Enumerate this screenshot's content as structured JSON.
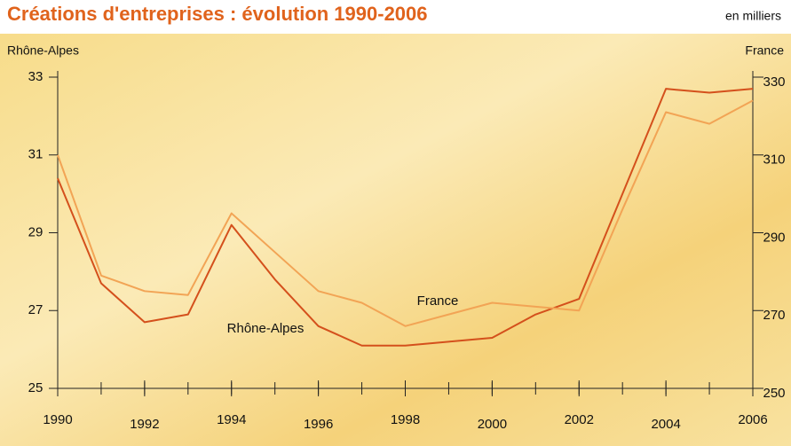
{
  "chart_data": {
    "type": "line",
    "title": "Créations d'entreprises : évolution 1990-2006",
    "subtitle": "en milliers",
    "y_label": "Rhône-Alpes",
    "y2_label": "France",
    "x": [
      1990,
      1991,
      1992,
      1993,
      1994,
      1995,
      1996,
      1997,
      1998,
      1999,
      2000,
      2001,
      2002,
      2003,
      2004,
      2005,
      2006
    ],
    "xlim": [
      1990,
      2006
    ],
    "xticks": [
      1990,
      1992,
      1994,
      1996,
      1998,
      2000,
      2002,
      2004,
      2006
    ],
    "ylim": [
      25,
      33
    ],
    "yticks": [
      25,
      27,
      29,
      31,
      33
    ],
    "y2lim": [
      250,
      330
    ],
    "y2ticks": [
      250,
      270,
      290,
      310,
      330
    ],
    "series": [
      {
        "name": "Rhône-Alpes",
        "color": "#d4501c",
        "values": [
          30.4,
          27.7,
          26.7,
          26.9,
          29.2,
          27.8,
          26.6,
          26.1,
          26.1,
          26.2,
          26.3,
          26.9,
          27.3,
          30.0,
          32.7,
          32.6,
          32.7
        ]
      },
      {
        "name": "France",
        "color": "#f2a455",
        "axis": "y2",
        "values": [
          310,
          279,
          275,
          274,
          295,
          285,
          275,
          272,
          266,
          269,
          272,
          271,
          270,
          296,
          321,
          318,
          324
        ]
      }
    ]
  }
}
